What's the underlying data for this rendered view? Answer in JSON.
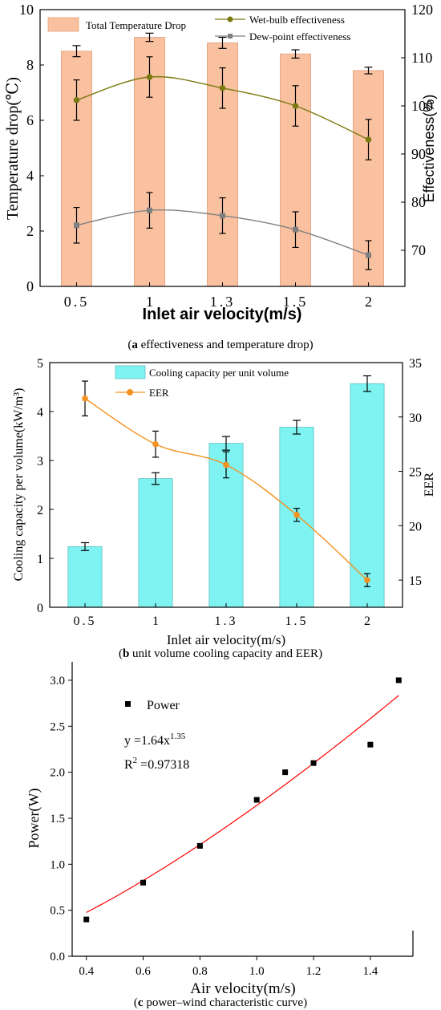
{
  "chart_data": [
    {
      "type": "bar+line",
      "categories": [
        "0.5",
        "1",
        "1.3",
        "1.5",
        "2"
      ],
      "xlabel": "Inlet air velocity(m/s)",
      "ylabel": "Temperature drop(℃)",
      "ylabel_right": "Effectiveness(%)",
      "ylim": [
        0,
        10
      ],
      "ylim_right": [
        62.5,
        120
      ],
      "yticks": [
        0,
        2,
        4,
        6,
        8,
        10
      ],
      "yticks_right": [
        70,
        80,
        90,
        100,
        110,
        120
      ],
      "legend_position": "top",
      "caption_label": "a",
      "caption_text": " effectiveness and temperature drop",
      "bars": {
        "name": "Total Temperature Drop",
        "color": "#f9c1a0",
        "values": [
          8.5,
          9.0,
          8.8,
          8.4,
          7.8
        ],
        "errors": [
          0.2,
          0.15,
          0.2,
          0.15,
          0.12
        ]
      },
      "series": [
        {
          "name": "Wet-bulb effectiveness",
          "color": "#7a7a10",
          "marker": "circle",
          "values": [
            101.2,
            106,
            103.7,
            100,
            93
          ],
          "errors": [
            4.2,
            4.2,
            4.2,
            4.2,
            4.2
          ]
        },
        {
          "name": "Dew-point effectiveness",
          "color": "#808080",
          "marker": "square",
          "values": [
            75.2,
            78.3,
            77.2,
            74.3,
            69
          ],
          "errors": [
            3.7,
            3.7,
            3.7,
            3.7,
            3.0
          ]
        }
      ]
    },
    {
      "type": "bar+line",
      "categories": [
        "0.5",
        "1",
        "1.3",
        "1.5",
        "2"
      ],
      "xlabel": "Inlet air velocity(m/s)",
      "ylabel": "Cooling capacity per volume(kW/m³)",
      "ylabel_right": "EER",
      "ylim": [
        0,
        5
      ],
      "ylim_right": [
        12.5,
        35
      ],
      "yticks": [
        0,
        1,
        2,
        3,
        4,
        5
      ],
      "yticks_right": [
        15,
        20,
        25,
        30,
        35
      ],
      "legend_position": "top",
      "caption_label": "b",
      "caption_text": " unit volume cooling capacity and EER",
      "bars": {
        "name": "Cooling capacity per unit volume",
        "color": "#7ff2f2",
        "values": [
          1.24,
          2.63,
          3.35,
          3.68,
          4.57
        ],
        "errors": [
          0.08,
          0.12,
          0.14,
          0.14,
          0.16
        ]
      },
      "series": [
        {
          "name": "EER",
          "color": "#f39221",
          "marker": "circle",
          "values": [
            31.7,
            27.5,
            25.6,
            21.0,
            15.0
          ],
          "errors": [
            1.6,
            1.2,
            1.2,
            0.6,
            0.6
          ]
        }
      ]
    },
    {
      "type": "scatter",
      "xlabel": "Air velocity(m/s)",
      "ylabel": "Power(W)",
      "xlim": [
        0.35,
        1.55
      ],
      "ylim": [
        0,
        3.2
      ],
      "xticks": [
        "0.4",
        "0.6",
        "0.8",
        "1.0",
        "1.2",
        "1.4"
      ],
      "yticks": [
        "0.0",
        "0.5",
        "1.0",
        "1.5",
        "2.0",
        "2.5",
        "3.0"
      ],
      "legend_position": "top-left",
      "caption_label": "c",
      "caption_text": " power–wind characteristic curve",
      "series": [
        {
          "name": "Power",
          "color": "#000000",
          "marker": "square",
          "x": [
            0.4,
            0.6,
            0.8,
            1.0,
            1.1,
            1.2,
            1.4,
            1.5
          ],
          "y": [
            0.4,
            0.8,
            1.2,
            1.7,
            2.0,
            2.1,
            2.3,
            3.0
          ]
        }
      ],
      "fit": {
        "color": "#ff0000",
        "coef": 1.64,
        "exponent": 1.35,
        "x_range": [
          0.4,
          1.5
        ],
        "eq_lhs": "y =1.64x",
        "eq_exp": "1.35",
        "r2_label": "R",
        "r2_sup": "2",
        "r2_value": " =0.97318"
      }
    }
  ]
}
